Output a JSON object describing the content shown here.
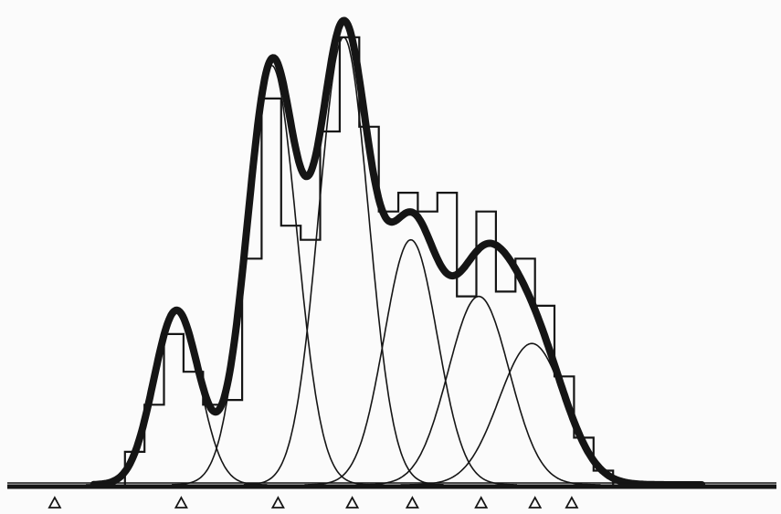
{
  "chart_data": {
    "type": "area",
    "title": "",
    "xlabel": "",
    "ylabel": "",
    "grid": false,
    "legend": "none",
    "xlim": [
      0,
      100
    ],
    "ylim": [
      0,
      1
    ],
    "components": [
      {
        "mu": 22.6,
        "sigma": 2.9,
        "amp": 0.37
      },
      {
        "mu": 34.8,
        "sigma": 3.2,
        "amp": 0.89
      },
      {
        "mu": 44.0,
        "sigma": 3.2,
        "amp": 0.95
      },
      {
        "mu": 52.6,
        "sigma": 3.4,
        "amp": 0.52
      },
      {
        "mu": 61.3,
        "sigma": 3.9,
        "amp": 0.4
      },
      {
        "mu": 68.1,
        "sigma": 4.2,
        "amp": 0.3
      }
    ],
    "histogram": {
      "edges": [
        16,
        18.5,
        21,
        23.5,
        26,
        28.5,
        31,
        33.5,
        36,
        38.5,
        41,
        43.5,
        46,
        48.5,
        51,
        53.5,
        56,
        58.5,
        61,
        63.5,
        66,
        68.5,
        71,
        73.5,
        76,
        78.5
      ],
      "values": [
        0.07,
        0.17,
        0.32,
        0.24,
        0.17,
        0.18,
        0.48,
        0.82,
        0.55,
        0.52,
        0.75,
        0.95,
        0.76,
        0.58,
        0.62,
        0.58,
        0.62,
        0.4,
        0.58,
        0.41,
        0.48,
        0.38,
        0.23,
        0.1,
        0.03
      ]
    },
    "markers": [
      7.0,
      23.2,
      35.6,
      45.1,
      52.8,
      61.6,
      68.5,
      73.2
    ]
  },
  "colors": {
    "ink": "#151515",
    "background": "#fbfbfb"
  }
}
